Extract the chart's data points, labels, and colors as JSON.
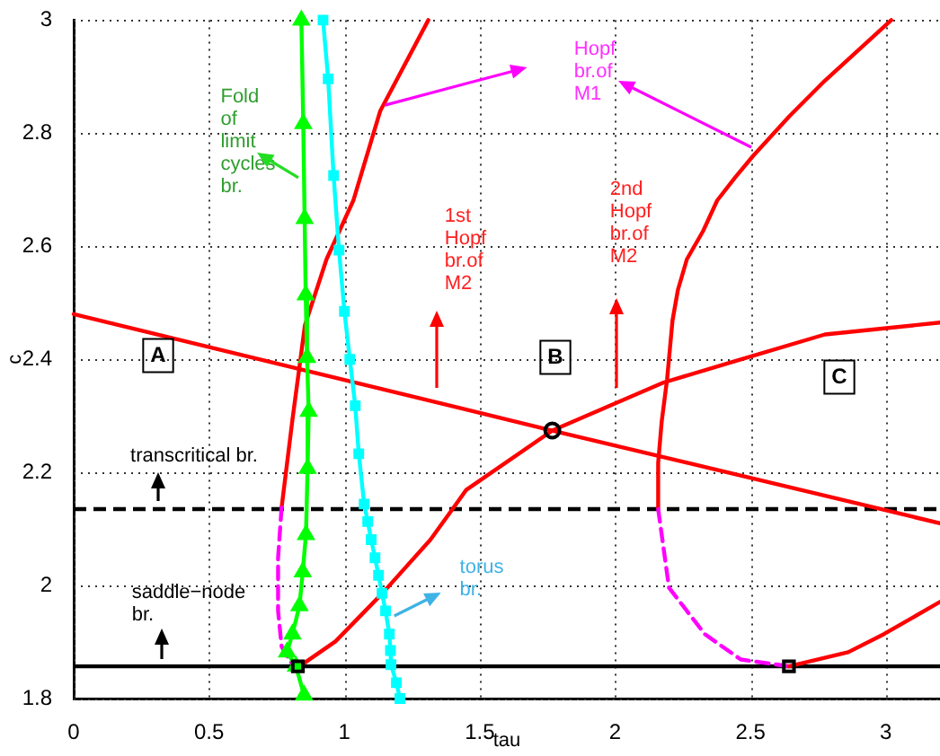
{
  "chart_data": {
    "type": "line",
    "xlabel": "tau",
    "ylabel": "c",
    "xlim": [
      0,
      3.2
    ],
    "xticks": [
      0,
      0.5,
      1,
      1.5,
      2,
      2.5,
      3
    ],
    "ylim": [
      1.8,
      3
    ],
    "yticks": [
      1.8,
      2,
      2.2,
      2.4,
      2.6,
      2.8,
      3
    ],
    "grid": true,
    "series": [
      {
        "color": "#ff0000",
        "x": [
          0,
          1.768,
          3.2
        ],
        "values": [
          2.48,
          2.274,
          2.11
        ]
      },
      {
        "color": "#ff0000",
        "x": [
          0.834,
          0.967,
          1.14,
          1.318,
          1.45,
          1.768,
          2.179,
          2.444,
          2.775,
          3.2
        ],
        "values": [
          1.857,
          1.901,
          1.986,
          2.081,
          2.169,
          2.274,
          2.359,
          2.397,
          2.444,
          2.465
        ]
      },
      {
        "color": "#ff0000",
        "x": [
          0.768,
          0.808,
          0.834,
          0.854,
          0.934,
          1.033,
          1.132,
          1.31
        ],
        "values": [
          2.138,
          2.293,
          2.387,
          2.46,
          2.577,
          2.681,
          2.839,
          3.0
        ]
      },
      {
        "color": "#ff00ff",
        "line_style": "dashed",
        "x": [
          0.768,
          0.755,
          0.755,
          0.768,
          0.808,
          0.828
        ],
        "values": [
          2.138,
          2.049,
          1.955,
          1.892,
          1.86,
          1.857
        ]
      },
      {
        "color": "#ff0000",
        "x": [
          3.02,
          2.775,
          2.642,
          2.51,
          2.444,
          2.377,
          2.325,
          2.265,
          2.232,
          2.212,
          2.192,
          2.172,
          2.159,
          2.159
        ],
        "values": [
          3.0,
          2.893,
          2.829,
          2.76,
          2.722,
          2.681,
          2.627,
          2.577,
          2.523,
          2.469,
          2.365,
          2.29,
          2.217,
          2.135
        ]
      },
      {
        "color": "#ff00ff",
        "line_style": "dashed",
        "x": [
          2.159,
          2.199,
          2.331,
          2.464,
          2.642
        ],
        "values": [
          2.135,
          1.996,
          1.914,
          1.869,
          1.857
        ]
      },
      {
        "color": "#ff0000",
        "x": [
          2.642,
          2.861,
          2.993,
          3.2
        ],
        "values": [
          1.857,
          1.882,
          1.914,
          1.971
        ]
      },
      {
        "color": "#00ff00",
        "marker": "triangle",
        "x": [
          0.841,
          0.848,
          0.853,
          0.857,
          0.862,
          0.868,
          0.864,
          0.858,
          0.846,
          0.834,
          0.808,
          0.788,
          0.821,
          0.851
        ],
        "values": [
          3.0,
          2.817,
          2.649,
          2.514,
          2.403,
          2.308,
          2.207,
          2.09,
          2.024,
          1.964,
          1.914,
          1.882,
          1.857,
          1.806
        ]
      },
      {
        "color": "#00ffff",
        "marker": "square",
        "x": [
          0.921,
          0.94,
          0.96,
          0.98,
          1.0,
          1.02,
          1.04,
          1.053,
          1.073,
          1.086,
          1.099,
          1.113,
          1.126,
          1.139,
          1.152,
          1.166,
          1.17,
          1.172,
          1.192,
          1.205
        ],
        "values": [
          3.0,
          2.896,
          2.725,
          2.593,
          2.485,
          2.4,
          2.318,
          2.233,
          2.144,
          2.113,
          2.081,
          2.049,
          2.018,
          1.986,
          1.955,
          1.914,
          1.885,
          1.86,
          1.828,
          1.8
        ]
      },
      {
        "type": "scatter",
        "color": "#000000",
        "marker": "circle",
        "x": [
          1.768
        ],
        "values": [
          2.274
        ]
      },
      {
        "type": "scatter",
        "color": "#000000",
        "marker": "square",
        "x": [
          0.828,
          2.642
        ],
        "values": [
          1.857,
          1.857
        ]
      }
    ],
    "ref_lines": [
      {
        "axis": "y",
        "value": 2.135,
        "color": "#000000",
        "line_style": "dashed"
      },
      {
        "axis": "y",
        "value": 1.857,
        "color": "#000000",
        "line_style": "solid"
      }
    ],
    "annotations": [
      "A",
      "B",
      "C",
      "transcritical br.",
      "saddle−node\nbr.",
      "torus\nbr.",
      "Fold\nof\nlimit\ncycles\nbr.",
      "1st\nHopf\nbr.of\nM2",
      "2nd\nHopf\nbr.of\nM2",
      "Hopf\nbr.of\nM1"
    ]
  }
}
